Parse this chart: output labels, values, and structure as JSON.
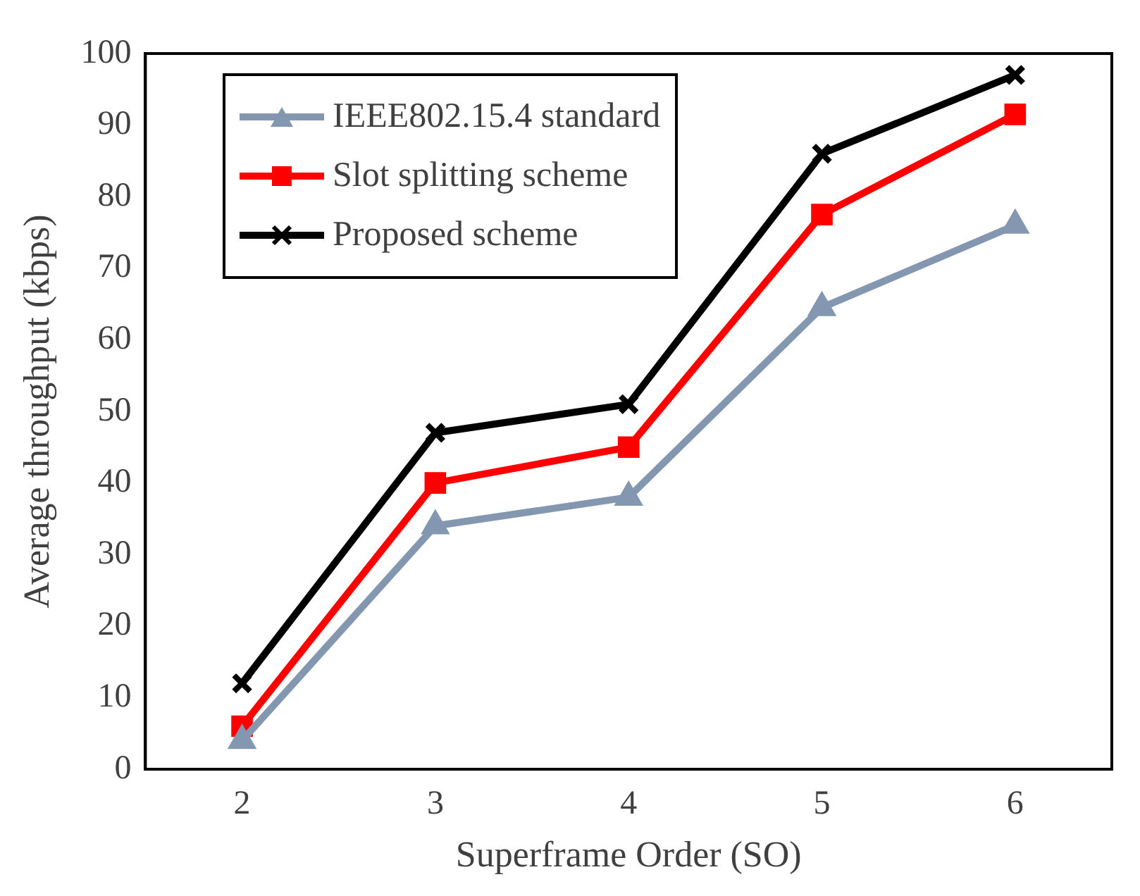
{
  "chart_data": {
    "type": "line",
    "xlabel": "Superframe Order (SO)",
    "ylabel": "Average throughput (kbps)",
    "categories": [
      "2",
      "3",
      "4",
      "5",
      "6"
    ],
    "series": [
      {
        "name": "IEEE802.15.4 standard",
        "color": "#8497b0",
        "marker": "triangle",
        "values": [
          4,
          34,
          38,
          64.5,
          76
        ]
      },
      {
        "name": "Slot splitting scheme",
        "color": "#ff0000",
        "marker": "square",
        "values": [
          6,
          40,
          45,
          77.5,
          91.5
        ]
      },
      {
        "name": "Proposed scheme",
        "color": "#000000",
        "marker": "cross",
        "values": [
          12,
          47,
          51,
          86,
          97
        ]
      }
    ],
    "ylim": [
      0,
      100
    ],
    "yticks": [
      0,
      10,
      20,
      30,
      40,
      50,
      60,
      70,
      80,
      90,
      100
    ],
    "grid": false,
    "legend": "top left",
    "line_style": "solid"
  }
}
